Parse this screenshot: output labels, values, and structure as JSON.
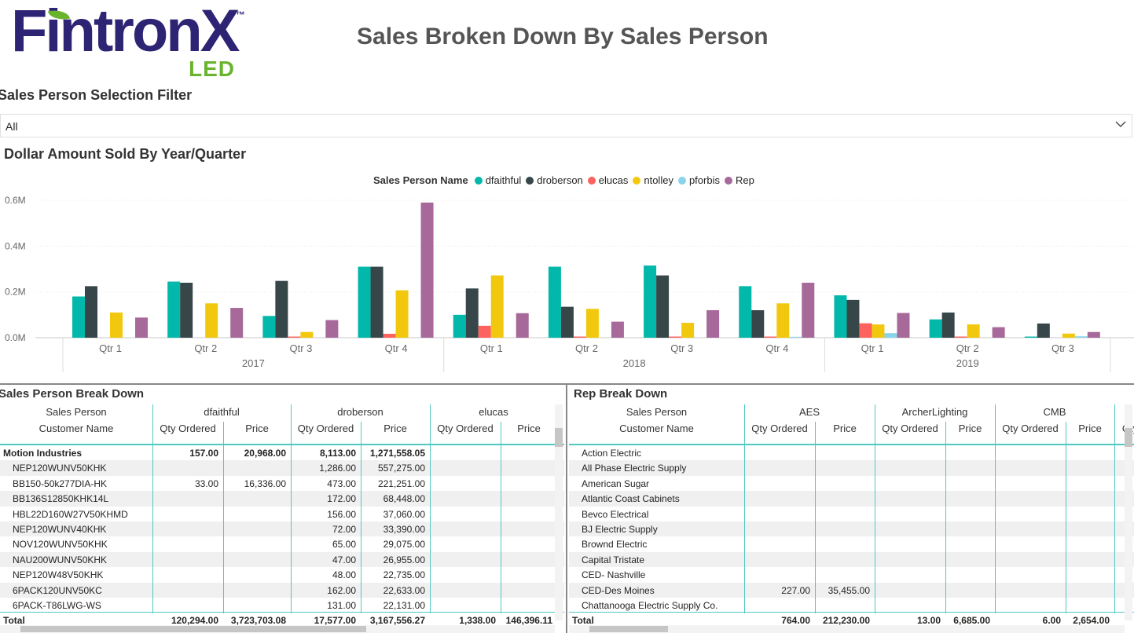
{
  "logo": {
    "name": "FintronX",
    "tm": "™",
    "sub": "LED"
  },
  "page_title": "Sales Broken Down By Sales Person",
  "filter": {
    "title": "Sales Person Selection Filter",
    "value": "All"
  },
  "chart_title": "Dollar Amount Sold By Year/Quarter",
  "legend_title": "Sales Person Name",
  "colors": {
    "teal": "#01b8aa",
    "grid": "#4fc9c0"
  },
  "chart_data": {
    "type": "bar",
    "title": "Dollar Amount Sold By Year/Quarter",
    "ylabel": "",
    "ylim": [
      0,
      0.6
    ],
    "y_ticks": [
      "0.0M",
      "0.2M",
      "0.4M",
      "0.6M"
    ],
    "categories": [
      "Qtr 1",
      "Qtr 2",
      "Qtr 3",
      "Qtr 4",
      "Qtr 1",
      "Qtr 2",
      "Qtr 3",
      "Qtr 4",
      "Qtr 1",
      "Qtr 2",
      "Qtr 3"
    ],
    "years": [
      {
        "label": "2017",
        "span": 4
      },
      {
        "label": "2018",
        "span": 4
      },
      {
        "label": "2019",
        "span": 3
      }
    ],
    "series": [
      {
        "name": "dfaithful",
        "color": "#01b8aa",
        "values": [
          0.18,
          0.245,
          0.095,
          0.31,
          0.1,
          0.31,
          0.315,
          0.225,
          0.185,
          0.08,
          0.005
        ]
      },
      {
        "name": "droberson",
        "color": "#374649",
        "values": [
          0.225,
          0.24,
          0.248,
          0.31,
          0.215,
          0.135,
          0.272,
          0.12,
          0.165,
          0.11,
          0.062
        ]
      },
      {
        "name": "elucas",
        "color": "#fd625e",
        "values": [
          0,
          0,
          0.005,
          0.017,
          0.052,
          0.005,
          0.005,
          0.005,
          0.063,
          0.005,
          0
        ]
      },
      {
        "name": "ntolley",
        "color": "#f2c80f",
        "values": [
          0.11,
          0.15,
          0.025,
          0.207,
          0.272,
          0.126,
          0.065,
          0.15,
          0.058,
          0.058,
          0.018
        ]
      },
      {
        "name": "pforbis",
        "color": "#8ad4eb",
        "values": [
          0,
          0,
          0,
          0,
          0,
          0,
          0,
          0.004,
          0.02,
          0,
          0.006
        ]
      },
      {
        "name": "Rep",
        "color": "#a66999",
        "values": [
          0.088,
          0.13,
          0.077,
          0.59,
          0.107,
          0.07,
          0.12,
          0.24,
          0.108,
          0.046,
          0.025
        ]
      }
    ]
  },
  "left_table": {
    "title": "Sales Person Break Down",
    "row_header_1": "Sales Person",
    "row_header_2": "Customer Name",
    "groups": [
      "dfaithful",
      "droberson",
      "elucas"
    ],
    "sub_headers": [
      "Qty Ordered",
      "Price",
      "Qty Ordered",
      "Price",
      "Qty Ordered",
      "Price"
    ],
    "rows": [
      {
        "name": "Motion Industries",
        "bold": true,
        "vals": [
          "157.00",
          "20,968.00",
          "8,113.00",
          "1,271,558.05",
          "",
          ""
        ]
      },
      {
        "name": "NEP120WUNV50KHK",
        "vals": [
          "",
          "",
          "1,286.00",
          "557,275.00",
          "",
          ""
        ]
      },
      {
        "name": "BB150-50k277DIA-HK",
        "vals": [
          "33.00",
          "16,336.00",
          "473.00",
          "221,251.00",
          "",
          ""
        ]
      },
      {
        "name": "BB136S12850KHK14L",
        "vals": [
          "",
          "",
          "172.00",
          "68,448.00",
          "",
          ""
        ]
      },
      {
        "name": "HBL22D160W27V50KHMD",
        "vals": [
          "",
          "",
          "156.00",
          "37,060.00",
          "",
          ""
        ]
      },
      {
        "name": "NEP120WUNV40KHK",
        "vals": [
          "",
          "",
          "72.00",
          "33,390.00",
          "",
          ""
        ]
      },
      {
        "name": "NOV120WUNV50KHK",
        "vals": [
          "",
          "",
          "65.00",
          "29,075.00",
          "",
          ""
        ]
      },
      {
        "name": "NAU200WUNV50KHK",
        "vals": [
          "",
          "",
          "47.00",
          "26,955.00",
          "",
          ""
        ]
      },
      {
        "name": "NEP120W48V50KHK",
        "vals": [
          "",
          "",
          "48.00",
          "22,735.00",
          "",
          ""
        ]
      },
      {
        "name": "6PACK120UNV50KC",
        "vals": [
          "",
          "",
          "162.00",
          "22,633.00",
          "",
          ""
        ]
      },
      {
        "name": "6PACK-T86LWG-WS",
        "vals": [
          "",
          "",
          "131.00",
          "22,131.00",
          "",
          ""
        ]
      }
    ],
    "total": {
      "name": "Total",
      "vals": [
        "120,294.00",
        "3,723,703.08",
        "17,577.00",
        "3,167,556.27",
        "1,338.00",
        "146,396.11"
      ]
    }
  },
  "right_table": {
    "title": "Rep Break Down",
    "row_header_1": "Sales Person",
    "row_header_2": "Customer Name",
    "groups": [
      "AES",
      "ArcherLighting",
      "CMB"
    ],
    "sub_headers": [
      "Qty Ordered",
      "Price",
      "Qty Ordered",
      "Price",
      "Qty Ordered",
      "Price",
      "Qty"
    ],
    "rows": [
      {
        "name": "Action Electric",
        "vals": [
          "",
          "",
          "",
          "",
          "",
          ""
        ]
      },
      {
        "name": "All Phase Electric Supply",
        "vals": [
          "",
          "",
          "",
          "",
          "",
          ""
        ]
      },
      {
        "name": "American Sugar",
        "vals": [
          "",
          "",
          "",
          "",
          "",
          ""
        ]
      },
      {
        "name": "Atlantic Coast Cabinets",
        "vals": [
          "",
          "",
          "",
          "",
          "",
          ""
        ]
      },
      {
        "name": "Bevco Electrical",
        "vals": [
          "",
          "",
          "",
          "",
          "",
          ""
        ]
      },
      {
        "name": "BJ Electric Supply",
        "vals": [
          "",
          "",
          "",
          "",
          "",
          ""
        ]
      },
      {
        "name": "Brownd Electric",
        "vals": [
          "",
          "",
          "",
          "",
          "",
          ""
        ]
      },
      {
        "name": "Capital Tristate",
        "vals": [
          "",
          "",
          "",
          "",
          "",
          ""
        ]
      },
      {
        "name": "CED- Nashville",
        "vals": [
          "",
          "",
          "",
          "",
          "",
          ""
        ]
      },
      {
        "name": "CED-Des Moines",
        "vals": [
          "227.00",
          "35,455.00",
          "",
          "",
          "",
          ""
        ]
      },
      {
        "name": "Chattanooga Electric Supply Co.",
        "vals": [
          "",
          "",
          "",
          "",
          "",
          ""
        ]
      }
    ],
    "total": {
      "name": "Total",
      "vals": [
        "764.00",
        "212,230.00",
        "13.00",
        "6,685.00",
        "6.00",
        "2,654.00"
      ]
    }
  }
}
